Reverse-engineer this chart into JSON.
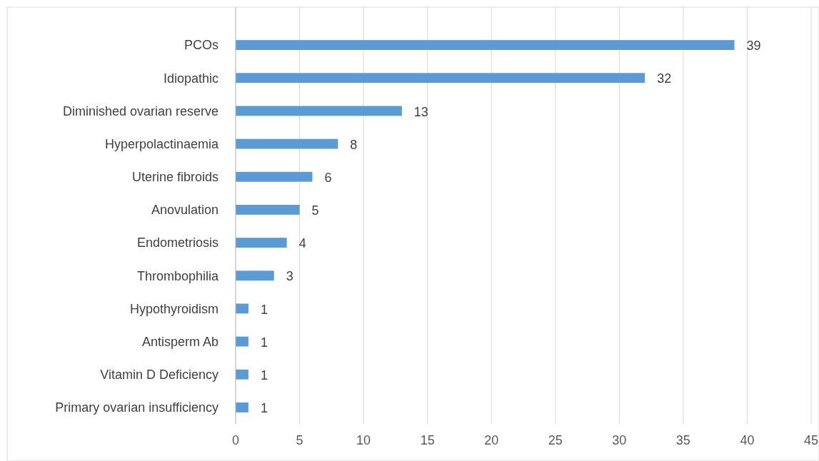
{
  "chart_data": {
    "type": "bar",
    "orientation": "horizontal",
    "categories": [
      "PCOs",
      "Idiopathic",
      "Diminished ovarian reserve",
      "Hyperpolactinaemia",
      "Uterine fibroids",
      "Anovulation",
      "Endometriosis",
      "Thrombophilia",
      "Hypothyroidism",
      "Antisperm Ab",
      "Vitamin D Deficiency",
      "Primary ovarian insufficiency"
    ],
    "values": [
      39,
      32,
      13,
      8,
      6,
      5,
      4,
      3,
      1,
      1,
      1,
      1
    ],
    "color": "#5b9bd5",
    "xlim": [
      0,
      45
    ],
    "xticks": [
      0,
      5,
      10,
      15,
      20,
      25,
      30,
      35,
      40,
      45
    ],
    "grid": "x",
    "data_labels": true
  }
}
